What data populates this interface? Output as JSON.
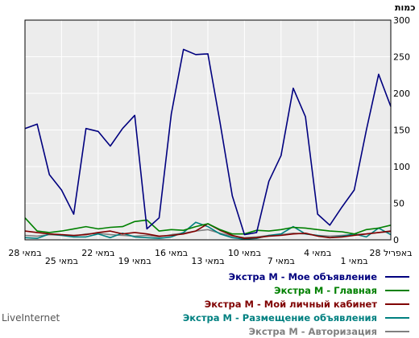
{
  "chart_data": {
    "type": "line",
    "ylabel": "כמות",
    "ylim": [
      0,
      300
    ],
    "yticks": [
      0,
      50,
      100,
      150,
      200,
      250,
      300
    ],
    "x_labels": [
      "28 במאי",
      "25 במאי",
      "22 במאי",
      "19 במאי",
      "16 במאי",
      "13 במאי",
      "10 במאי",
      "7 במאי",
      "4 במאי",
      "1 במאי",
      "28 באפריל"
    ],
    "grid": true,
    "background": "#ececec",
    "series": [
      {
        "name": "Экстра M - Мое объявление",
        "color": "#00007f",
        "values": [
          152,
          158,
          89,
          68,
          35,
          152,
          148,
          128,
          152,
          170,
          15,
          30,
          172,
          260,
          253,
          254,
          160,
          60,
          7,
          10,
          80,
          115,
          207,
          168,
          35,
          20,
          45,
          68,
          150,
          226,
          182
        ]
      },
      {
        "name": "Экстра M - Главная",
        "color": "#008000",
        "values": [
          30,
          12,
          10,
          12,
          15,
          18,
          15,
          17,
          18,
          25,
          27,
          12,
          14,
          13,
          18,
          22,
          14,
          8,
          8,
          13,
          12,
          14,
          17,
          16,
          14,
          12,
          11,
          8,
          14,
          16,
          20
        ]
      },
      {
        "name": "Экстра M - Мой личный кабинет",
        "color": "#800000",
        "values": [
          12,
          10,
          8,
          7,
          6,
          7,
          10,
          12,
          8,
          10,
          8,
          5,
          6,
          8,
          12,
          22,
          13,
          6,
          2,
          3,
          5,
          6,
          8,
          9,
          5,
          3,
          4,
          6,
          8,
          10,
          12
        ]
      },
      {
        "name": "Экстра M - Размещение объявления",
        "color": "#008080",
        "values": [
          3,
          2,
          8,
          6,
          4,
          4,
          8,
          3,
          9,
          4,
          3,
          2,
          4,
          10,
          24,
          18,
          8,
          3,
          1,
          2,
          6,
          8,
          18,
          8,
          6,
          3,
          5,
          8,
          4,
          16,
          7
        ]
      },
      {
        "name": "Экстра M - Авторизация",
        "color": "#808080",
        "values": [
          6,
          5,
          7,
          6,
          5,
          8,
          9,
          7,
          6,
          5,
          6,
          4,
          7,
          9,
          12,
          14,
          9,
          5,
          3,
          4,
          6,
          7,
          9,
          8,
          6,
          5,
          6,
          7,
          8,
          10,
          11
        ]
      }
    ]
  },
  "branding": {
    "text": "LiveInternet"
  }
}
